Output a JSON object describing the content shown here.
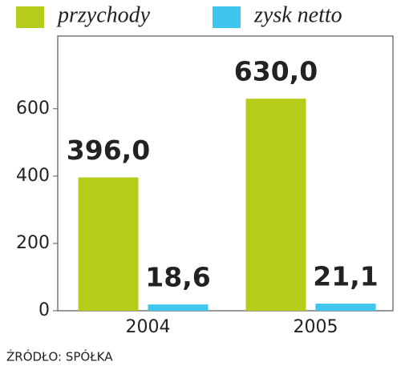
{
  "chart_data": {
    "type": "bar",
    "categories": [
      "2004",
      "2005"
    ],
    "series": [
      {
        "name": "przychody",
        "color": "#b5cc1a",
        "values": [
          396.0,
          630.0
        ],
        "value_labels": [
          "396,0",
          "630,0"
        ]
      },
      {
        "name": "zysk netto",
        "color": "#3ec6ef",
        "values": [
          18.6,
          21.1
        ],
        "value_labels": [
          "18,6",
          "21,1"
        ]
      }
    ],
    "ylim": [
      0,
      816
    ],
    "yticks": [
      0,
      200,
      400,
      600
    ],
    "source": "ŹRÓDŁO: SPÓŁKA"
  }
}
